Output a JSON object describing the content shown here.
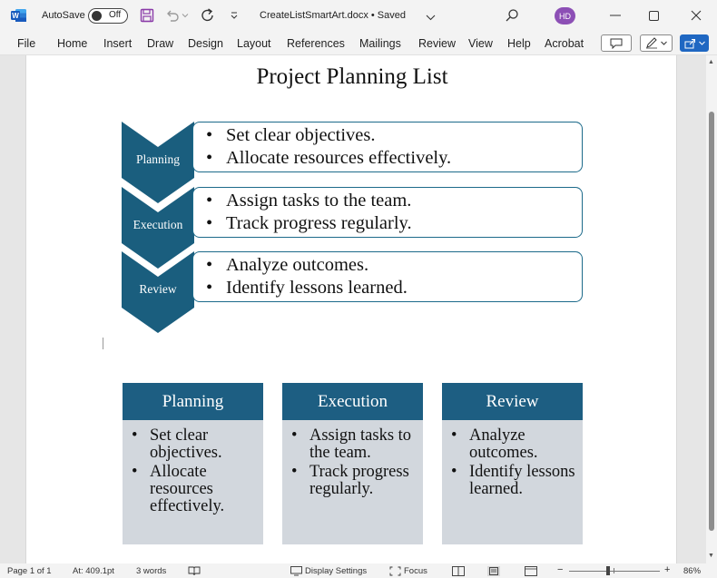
{
  "titlebar": {
    "autosave_label": "AutoSave",
    "autosave_state": "Off",
    "doc_title": "CreateListSmartArt.docx • Saved",
    "user_initials": "HD",
    "brand_color": "#185abd",
    "avatar_color": "#8c4fb5"
  },
  "ribbon": {
    "tabs": [
      "File",
      "Home",
      "Insert",
      "Draw",
      "Design",
      "Layout",
      "References",
      "Mailings",
      "Review",
      "View",
      "Help",
      "Acrobat"
    ]
  },
  "document": {
    "heading": "Project Planning List",
    "chevron_list": [
      {
        "label": "Planning",
        "items": [
          "Set clear objectives.",
          "Allocate resources effectively."
        ]
      },
      {
        "label": "Execution",
        "items": [
          "Assign tasks to the team.",
          "Track progress regularly."
        ]
      },
      {
        "label": "Review",
        "items": [
          "Analyze outcomes.",
          "Identify lessons learned."
        ]
      }
    ],
    "column_list": [
      {
        "label": "Planning",
        "items": [
          "Set clear objectives.",
          "Allocate resources effectively."
        ]
      },
      {
        "label": "Execution",
        "items": [
          "Assign tasks to the team.",
          "Track progress regularly."
        ]
      },
      {
        "label": "Review",
        "items": [
          "Analyze outcomes.",
          "Identify lessons learned."
        ]
      }
    ],
    "chevron_color": "#1a5e7e",
    "column_header_color": "#1d5e82",
    "column_body_color": "#d2d7dd"
  },
  "statusbar": {
    "page": "Page 1 of 1",
    "position": "At: 409.1pt",
    "words": "3 words",
    "display_settings": "Display Settings",
    "focus": "Focus",
    "zoom": "86%"
  }
}
